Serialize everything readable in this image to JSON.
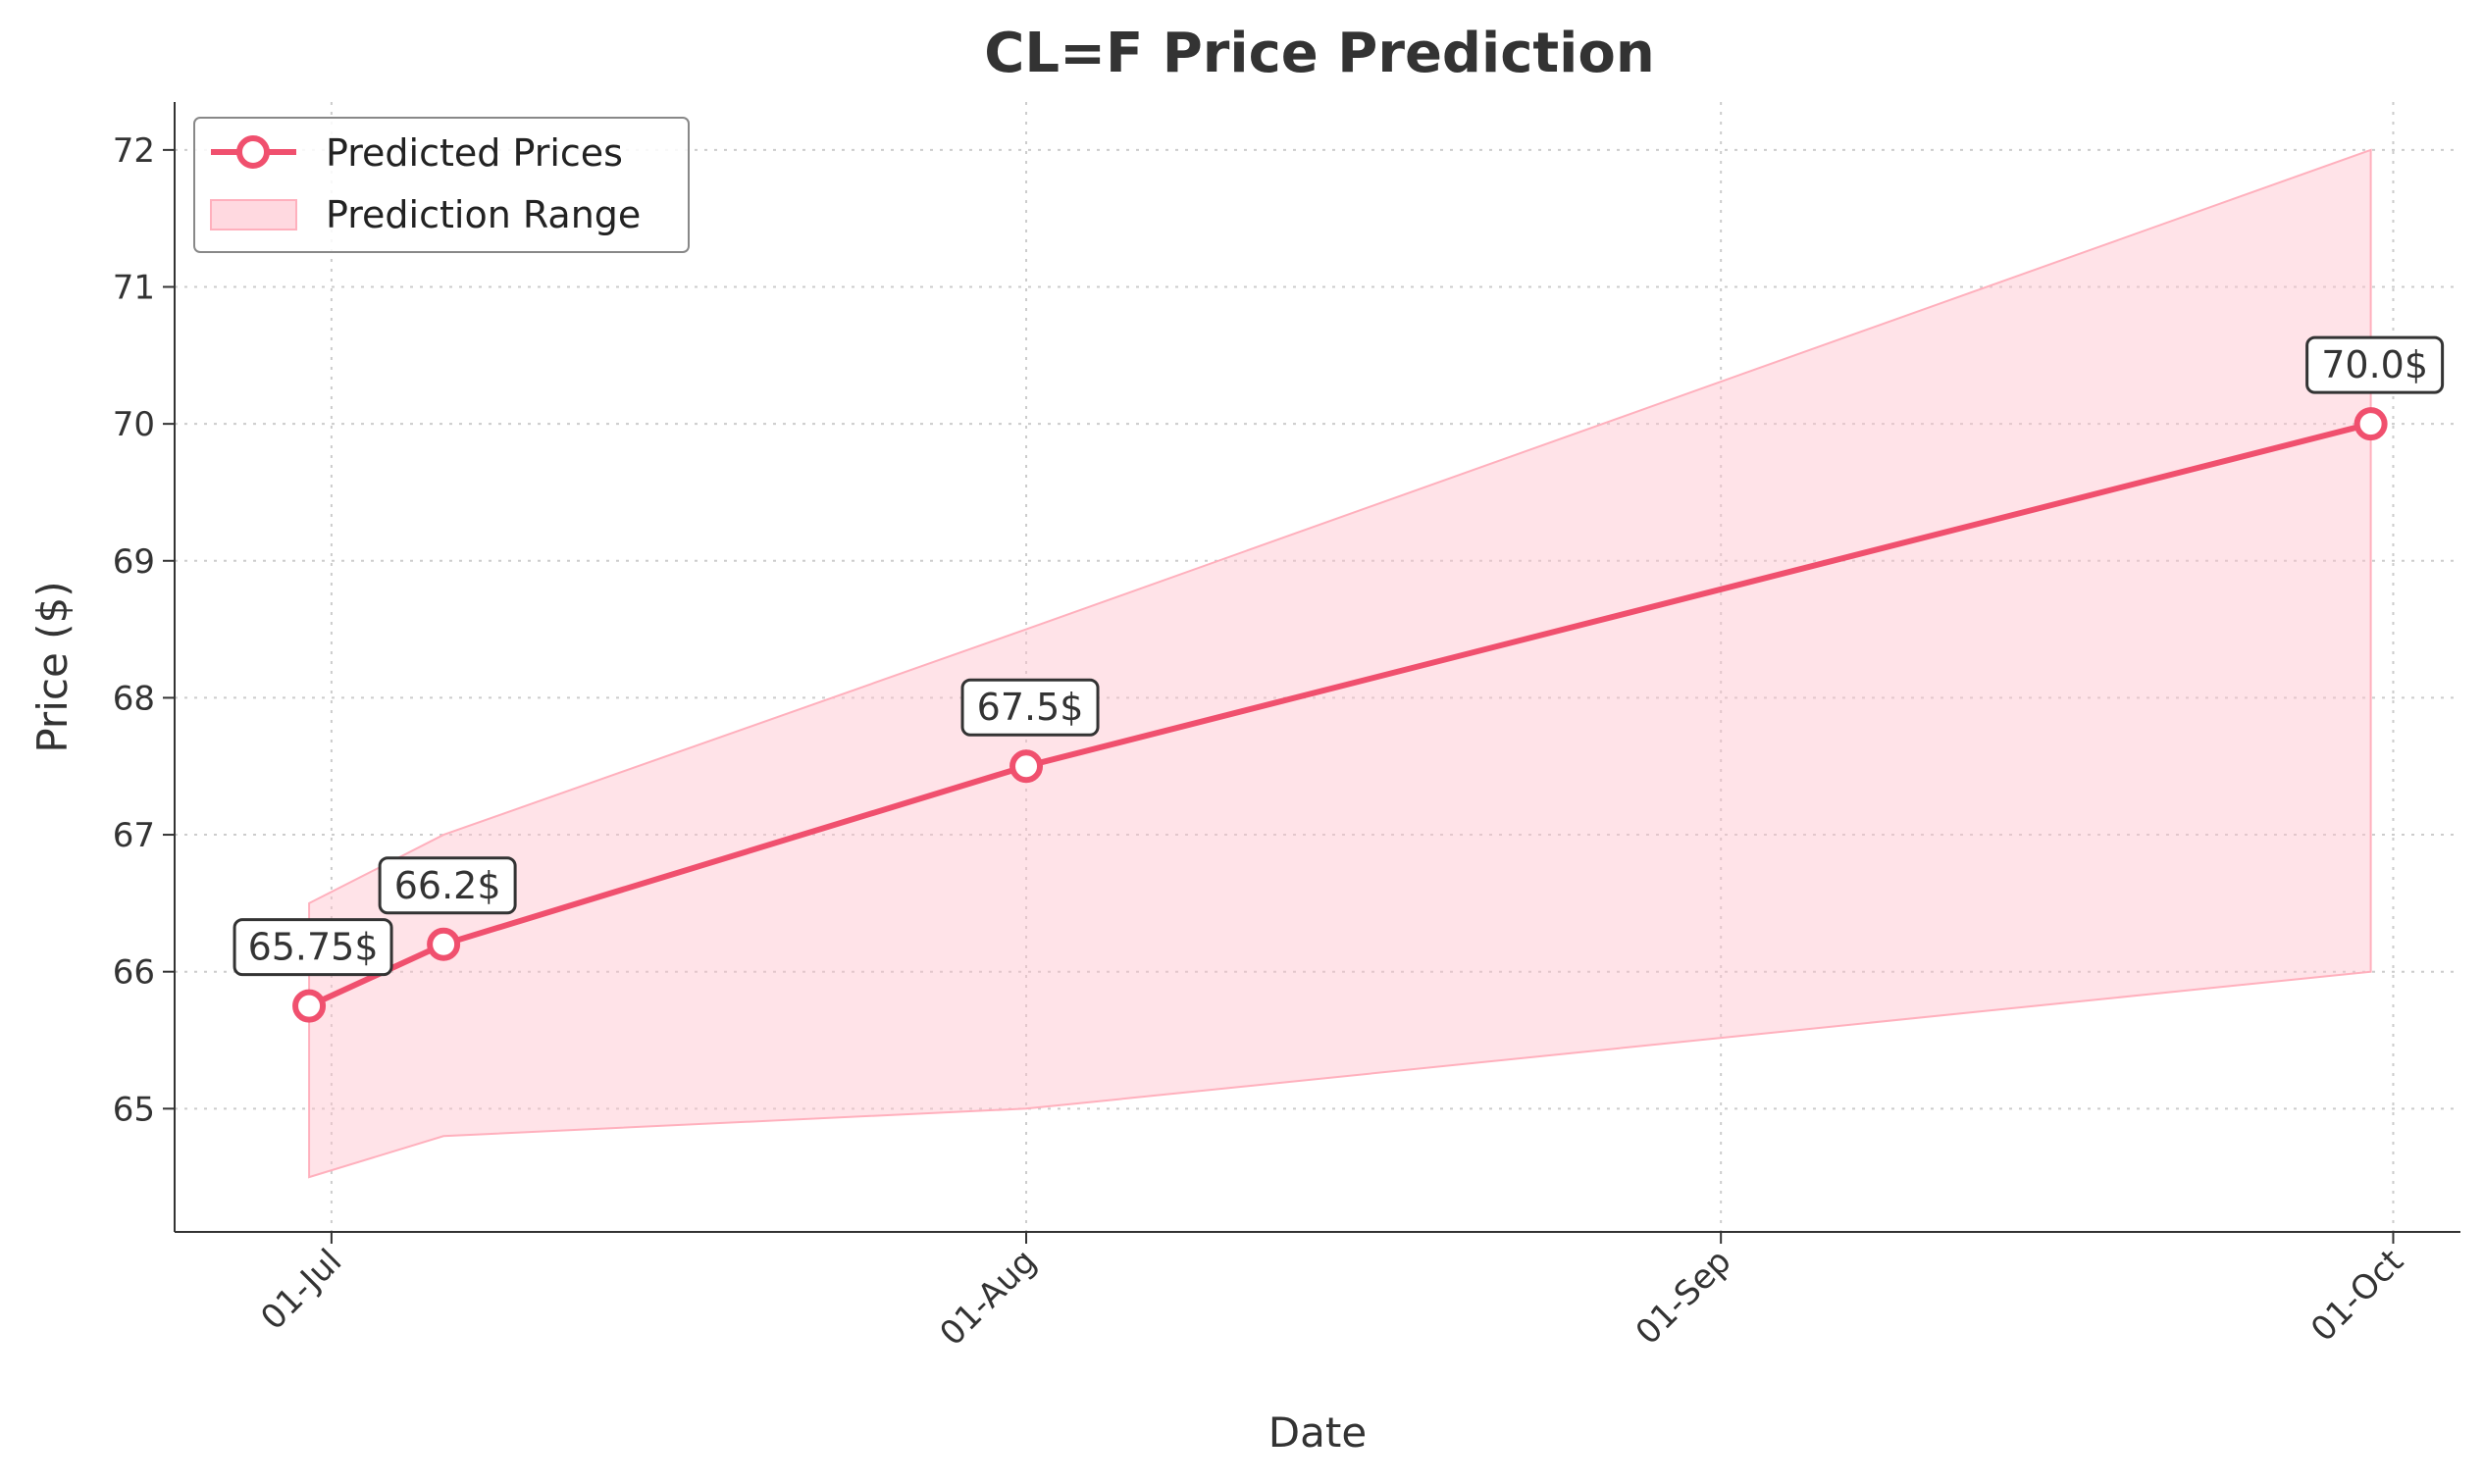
{
  "chart_data": {
    "type": "line",
    "title": "CL=F Price Prediction",
    "xlabel": "Date",
    "ylabel": "Price ($)",
    "x_tick_labels": [
      "01-Jul",
      "01-Aug",
      "01-Sep",
      "01-Oct"
    ],
    "x_ticks": [
      "2024-07-01",
      "2024-08-01",
      "2024-09-01",
      "2024-10-01"
    ],
    "xlim": [
      "2024-06-24",
      "2024-10-04"
    ],
    "ylim": [
      64.1,
      72.35
    ],
    "y_ticks": [
      65,
      66,
      67,
      68,
      69,
      70,
      71,
      72
    ],
    "grid": true,
    "legend_position": "top-left",
    "series": [
      {
        "name": "Predicted Prices",
        "x": [
          "2024-06-30",
          "2024-07-06",
          "2024-08-01",
          "2024-09-30"
        ],
        "values": [
          65.75,
          66.2,
          67.5,
          70.0
        ],
        "annotations": [
          "65.75$",
          "66.2$",
          "67.5$",
          "70.0$"
        ],
        "color": "#f0506e"
      }
    ],
    "range": {
      "name": "Prediction Range",
      "x": [
        "2024-06-30",
        "2024-07-06",
        "2024-08-01",
        "2024-09-30"
      ],
      "lower": [
        64.5,
        64.8,
        65.0,
        66.0
      ],
      "upper": [
        66.5,
        67.0,
        68.5,
        72.0
      ],
      "color": "#ffc0cb"
    }
  }
}
